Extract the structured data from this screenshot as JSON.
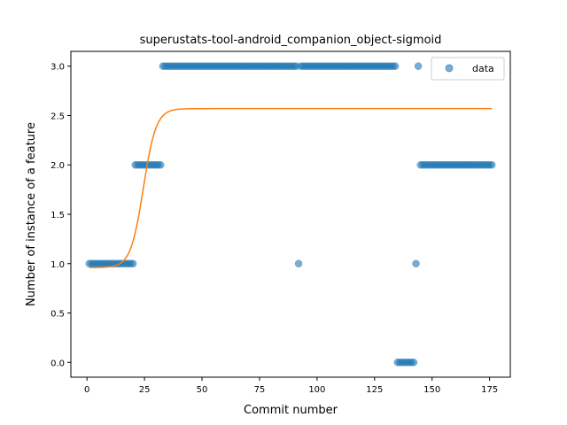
{
  "chart_data": {
    "type": "scatter",
    "title": "superustats-tool-android_companion_object-sigmoid",
    "xlabel": "Commit number",
    "ylabel": "Number of instance of a feature",
    "xlim": [
      -7,
      184
    ],
    "ylim": [
      -0.15,
      3.15
    ],
    "xticks": [
      0,
      25,
      50,
      75,
      100,
      125,
      150,
      175
    ],
    "yticks": [
      0.0,
      0.5,
      1.0,
      1.5,
      2.0,
      2.5,
      3.0
    ],
    "xtick_labels": [
      "0",
      "25",
      "50",
      "75",
      "100",
      "125",
      "150",
      "175"
    ],
    "ytick_labels": [
      "0.0",
      "0.5",
      "1.0",
      "1.5",
      "2.0",
      "2.5",
      "3.0"
    ],
    "legend": {
      "entries": [
        "data"
      ],
      "placement": "upper right"
    },
    "grid": false,
    "colors": {
      "scatter": "#1f77b4",
      "fit": "#ff7f0e"
    },
    "series": [
      {
        "name": "data",
        "kind": "scatter",
        "segments": [
          {
            "x_start": 1,
            "x_end": 20,
            "y": 1
          },
          {
            "x_start": 21,
            "x_end": 32,
            "y": 2
          },
          {
            "x_start": 33,
            "x_end": 91,
            "y": 3
          },
          {
            "x_start": 93,
            "x_end": 134,
            "y": 3
          },
          {
            "x_start": 135,
            "x_end": 142,
            "y": 0
          },
          {
            "x_start": 145,
            "x_end": 176,
            "y": 2
          }
        ],
        "points": [
          {
            "x": 92,
            "y": 1
          },
          {
            "x": 143,
            "y": 1
          },
          {
            "x": 144,
            "y": 3
          }
        ]
      },
      {
        "kind": "line",
        "model": "sigmoid",
        "params": {
          "L": 1.61,
          "x0": 24.5,
          "k": 0.36,
          "b": 0.96
        },
        "x_range": [
          1,
          176
        ]
      }
    ]
  }
}
